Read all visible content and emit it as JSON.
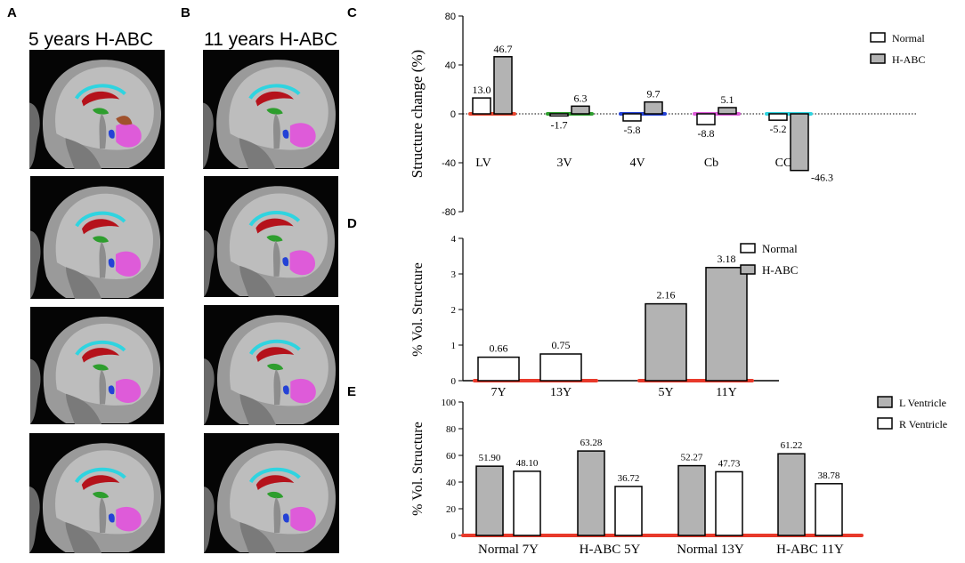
{
  "panels": {
    "a": {
      "letter": "A",
      "title": "5 years H-ABC"
    },
    "b": {
      "letter": "B",
      "title": "11 years H-ABC"
    },
    "c": {
      "letter": "C"
    },
    "d": {
      "letter": "D"
    },
    "e": {
      "letter": "E"
    }
  },
  "colors": {
    "normal_fill": "#ffffff",
    "habc_fill": "#b3b3b3",
    "axis_line": "#e8392a",
    "lv": "#e8452e",
    "v3": "#2e9e2e",
    "v4": "#2442d6",
    "cb": "#de5bd9",
    "cc": "#2fd4e0"
  },
  "chart_data": [
    {
      "id": "C",
      "type": "bar",
      "ylabel": "Structure change  (%)",
      "ylim": [
        -80,
        80
      ],
      "yticks": [
        "80",
        "40",
        "0",
        "-40",
        "-80"
      ],
      "yticks_values": [
        80,
        40,
        0,
        -40,
        -80
      ],
      "categories": [
        "LV",
        "3V",
        "4V",
        "Cb",
        "CC"
      ],
      "legend": [
        "Normal",
        "H-ABC"
      ],
      "series": [
        {
          "name": "Normal",
          "values": [
            13.0,
            -1.7,
            -5.8,
            -8.8,
            -5.2
          ],
          "labels": [
            "13.0",
            "-1.7",
            "-5.8",
            "-8.8",
            "-5.2"
          ]
        },
        {
          "name": "H-ABC",
          "values": [
            46.7,
            6.3,
            9.7,
            5.1,
            -46.3
          ],
          "labels": [
            "46.7",
            "6.3",
            "9.7",
            "5.1",
            "-46.3"
          ]
        }
      ]
    },
    {
      "id": "D",
      "type": "bar",
      "ylabel": "% Vol.  Structure",
      "ylim": [
        0,
        4
      ],
      "yticks": [
        "0",
        "1",
        "2",
        "3",
        "4"
      ],
      "yticks_values": [
        0,
        1,
        2,
        3,
        4
      ],
      "legend": [
        "Normal",
        "H-ABC"
      ],
      "bars": [
        {
          "category": "7Y",
          "group": "Normal",
          "value": 0.66,
          "label": "0.66"
        },
        {
          "category": "13Y",
          "group": "Normal",
          "value": 0.75,
          "label": "0.75"
        },
        {
          "category": "5Y",
          "group": "H-ABC",
          "value": 2.16,
          "label": "2.16"
        },
        {
          "category": "11Y",
          "group": "H-ABC",
          "value": 3.18,
          "label": "3.18"
        }
      ]
    },
    {
      "id": "E",
      "type": "bar",
      "ylabel": "% Vol.  Structure",
      "ylim": [
        0,
        100
      ],
      "yticks": [
        "0",
        "20",
        "40",
        "60",
        "80",
        "100"
      ],
      "yticks_values": [
        0,
        20,
        40,
        60,
        80,
        100
      ],
      "categories": [
        "Normal 7Y",
        "H-ABC 5Y",
        "Normal 13Y",
        "H-ABC 11Y"
      ],
      "legend": [
        "L Ventricle",
        "R Ventricle"
      ],
      "series": [
        {
          "name": "L Ventricle",
          "values": [
            51.9,
            63.28,
            52.27,
            61.22
          ],
          "labels": [
            "51.90",
            "63.28",
            "52.27",
            "61.22"
          ]
        },
        {
          "name": "R Ventricle",
          "values": [
            48.1,
            36.72,
            47.73,
            38.78
          ],
          "labels": [
            "48.10",
            "36.72",
            "47.73",
            "38.78"
          ]
        }
      ]
    }
  ]
}
